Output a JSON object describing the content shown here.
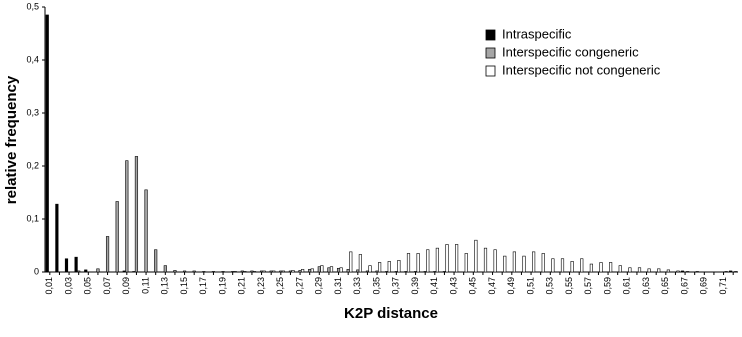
{
  "chart_data": {
    "type": "bar",
    "x_label": "K2P distance",
    "y_label": "relative frequency",
    "categories": [
      "0,01",
      null,
      "0,03",
      null,
      "0,05",
      null,
      "0,07",
      null,
      "0,09",
      null,
      "0,11",
      null,
      "0,13",
      null,
      "0,15",
      null,
      "0,17",
      null,
      "0,19",
      null,
      "0,21",
      null,
      "0,23",
      null,
      "0,25",
      null,
      "0,27",
      null,
      "0,29",
      null,
      "0,31",
      null,
      "0,33",
      null,
      "0,35",
      null,
      "0,37",
      null,
      "0,39",
      null,
      "0,41",
      null,
      "0,43",
      null,
      "0,45",
      null,
      "0,47",
      null,
      "0,49",
      null,
      "0,51",
      null,
      "0,53",
      null,
      "0,55",
      null,
      "0,57",
      null,
      "0,59",
      null,
      "0,61",
      null,
      "0,63",
      null,
      "0,65",
      null,
      "0,67",
      null,
      "0,69",
      null,
      "0,71",
      null
    ],
    "series": [
      {
        "name": "Intraspecific",
        "color": "#000000",
        "values": [
          0.485,
          0.128,
          0.025,
          0.028,
          0.004,
          0,
          0,
          0,
          0.002,
          0.001,
          0,
          0,
          0,
          0,
          0,
          0,
          0,
          0,
          0,
          0,
          0,
          0,
          0,
          0,
          0,
          0,
          0,
          0,
          0,
          0,
          0,
          0,
          0,
          0,
          0,
          0,
          0,
          0,
          0,
          0,
          0,
          0,
          0,
          0,
          0,
          0,
          0,
          0,
          0,
          0,
          0,
          0,
          0,
          0,
          0,
          0,
          0,
          0,
          0,
          0,
          0,
          0,
          0,
          0,
          0,
          0,
          0.002,
          0,
          0,
          0,
          0,
          0.002
        ]
      },
      {
        "name": "Interspecific congeneric",
        "color": "#a6a6a6",
        "values": [
          0,
          0,
          0,
          0.002,
          0,
          0.006,
          0.067,
          0.133,
          0.21,
          0.218,
          0.155,
          0.042,
          0.012,
          0.003,
          0.002,
          0.002,
          0.001,
          0.001,
          0.001,
          0.001,
          0.002,
          0.002,
          0.002,
          0.002,
          0.002,
          0.002,
          0.003,
          0.005,
          0.01,
          0.008,
          0.007,
          0.005,
          0.004,
          0.002,
          0.002,
          0.001,
          0.001,
          0.001,
          0.001,
          0.001,
          0.001,
          0.001,
          0,
          0,
          0,
          0,
          0,
          0,
          0,
          0,
          0,
          0,
          0,
          0,
          0,
          0,
          0,
          0,
          0,
          0,
          0,
          0,
          0,
          0,
          0,
          0,
          0,
          0,
          0,
          0,
          0,
          0
        ]
      },
      {
        "name": "Interspecific not congeneric",
        "color": "#ffffff",
        "values": [
          0,
          0,
          0,
          0,
          0,
          0,
          0,
          0,
          0,
          0,
          0,
          0,
          0,
          0,
          0,
          0,
          0,
          0,
          0,
          0.001,
          0.001,
          0.001,
          0.002,
          0.002,
          0.002,
          0.003,
          0.005,
          0.006,
          0.012,
          0.01,
          0.008,
          0.038,
          0.033,
          0.012,
          0.018,
          0.02,
          0.022,
          0.035,
          0.035,
          0.042,
          0.045,
          0.052,
          0.052,
          0.035,
          0.06,
          0.045,
          0.042,
          0.03,
          0.038,
          0.03,
          0.038,
          0.035,
          0.025,
          0.025,
          0.02,
          0.025,
          0.015,
          0.018,
          0.018,
          0.012,
          0.008,
          0.008,
          0.006,
          0.006,
          0.004,
          0.002,
          0.001,
          0.001,
          0,
          0,
          0.001,
          0.001
        ]
      }
    ],
    "ylim": [
      0,
      0.5
    ],
    "yticks": [
      0,
      {
        "value": 0.1,
        "label": "0,1"
      },
      {
        "value": 0.2,
        "label": "0,2"
      },
      {
        "value": 0.3,
        "label": "0,3"
      },
      {
        "value": 0.4,
        "label": "0,4"
      },
      {
        "value": 0.5,
        "label": "0,5"
      }
    ],
    "legend_position": "upper right"
  }
}
